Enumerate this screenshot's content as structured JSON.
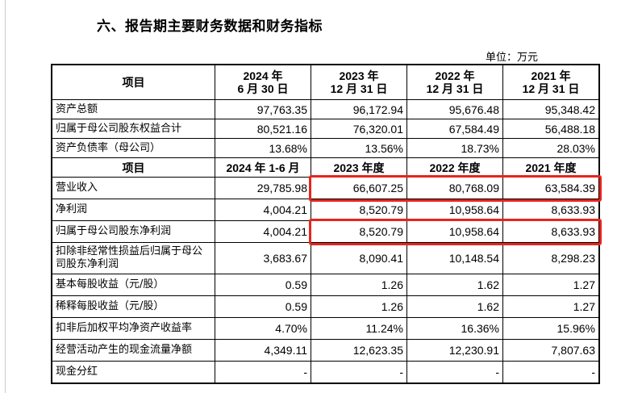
{
  "title": "六、报告期主要财务数据和财务指标",
  "unit": "单位：万元",
  "header1": [
    "项目",
    "2024 年\n6 月 30 日",
    "2023 年\n12 月 31 日",
    "2022 年\n12 月 31 日",
    "2021 年\n12 月 31 日"
  ],
  "balance_rows": [
    {
      "label": "资产总额",
      "values": [
        "97,763.35",
        "96,172.94",
        "95,676.48",
        "95,348.42"
      ]
    },
    {
      "label": "归属于母公司股东权益合计",
      "values": [
        "80,521.16",
        "76,320.01",
        "67,584.49",
        "56,488.18"
      ]
    },
    {
      "label": "资产负债率（母公司）",
      "values": [
        "13.68%",
        "13.56%",
        "18.73%",
        "28.03%"
      ]
    }
  ],
  "header2": [
    "项目",
    "2024 年 1-6 月",
    "2023 年度",
    "2022 年度",
    "2021 年度"
  ],
  "income_rows": [
    {
      "label": "营业收入",
      "values": [
        "29,785.98",
        "66,607.25",
        "80,768.09",
        "63,584.39"
      ],
      "highlighted": true
    },
    {
      "label": "净利润",
      "values": [
        "4,004.21",
        "8,520.79",
        "10,958.64",
        "8,633.93"
      ]
    },
    {
      "label": "归属于母公司股东净利润",
      "values": [
        "4,004.21",
        "8,520.79",
        "10,958.64",
        "8,633.93"
      ],
      "highlighted": true
    },
    {
      "label": "扣除非经常性损益后归属于母公司股东净利润",
      "values": [
        "3,683.67",
        "8,090.41",
        "10,148.54",
        "8,298.23"
      ]
    },
    {
      "label": "基本每股收益（元/股）",
      "values": [
        "0.59",
        "1.26",
        "1.62",
        "1.27"
      ]
    },
    {
      "label": "稀释每股收益（元/股）",
      "values": [
        "0.59",
        "1.26",
        "1.62",
        "1.27"
      ]
    },
    {
      "label": "扣非后加权平均净资产收益率",
      "values": [
        "4.70%",
        "11.24%",
        "16.36%",
        "15.96%"
      ]
    },
    {
      "label": "经营活动产生的现金流量净额",
      "values": [
        "4,349.11",
        "12,623.35",
        "12,230.91",
        "7,807.63"
      ]
    },
    {
      "label": "现金分红",
      "values": [
        "-",
        "-",
        "-",
        "-"
      ]
    }
  ],
  "colors": {
    "highlight": "#e8241c"
  }
}
